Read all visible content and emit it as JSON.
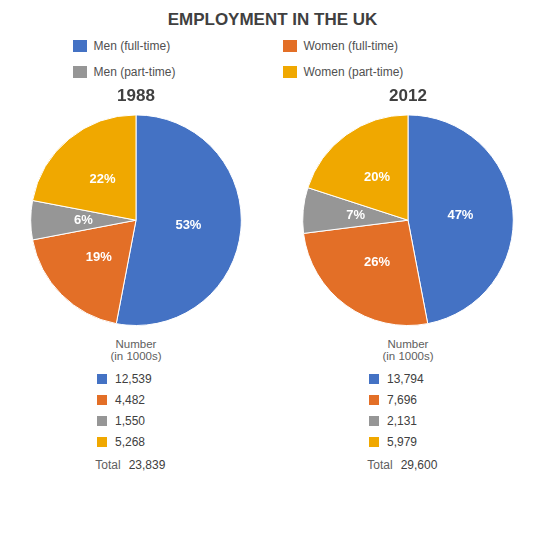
{
  "title": "EMPLOYMENT IN THE UK",
  "chart_data": [
    {
      "type": "pie",
      "title": "1988",
      "categories": [
        "Men (full-time)",
        "Women (full-time)",
        "Men (part-time)",
        "Women (part-time)"
      ],
      "values": [
        53,
        19,
        6,
        22
      ],
      "value_labels": [
        "53%",
        "19%",
        "6%",
        "22%"
      ],
      "colors": [
        "#4472C4",
        "#E36F27",
        "#969696",
        "#F0A800"
      ],
      "data_labels": true,
      "legend": "top",
      "number_label": "Number\n(in 1000s)",
      "numbers": [
        "12,539",
        "4,482",
        "1,550",
        "5,268"
      ],
      "total_label": "Total",
      "total": "23,839"
    },
    {
      "type": "pie",
      "title": "2012",
      "categories": [
        "Men (full-time)",
        "Women (full-time)",
        "Men (part-time)",
        "Women (part-time)"
      ],
      "values": [
        47,
        26,
        7,
        20
      ],
      "value_labels": [
        "47%",
        "26%",
        "7%",
        "20%"
      ],
      "colors": [
        "#4472C4",
        "#E36F27",
        "#969696",
        "#F0A800"
      ],
      "data_labels": true,
      "number_label": "Number\n(in 1000s)",
      "numbers": [
        "13,794",
        "7,696",
        "2,131",
        "5,979"
      ],
      "total_label": "Total",
      "total": "29,600"
    }
  ]
}
